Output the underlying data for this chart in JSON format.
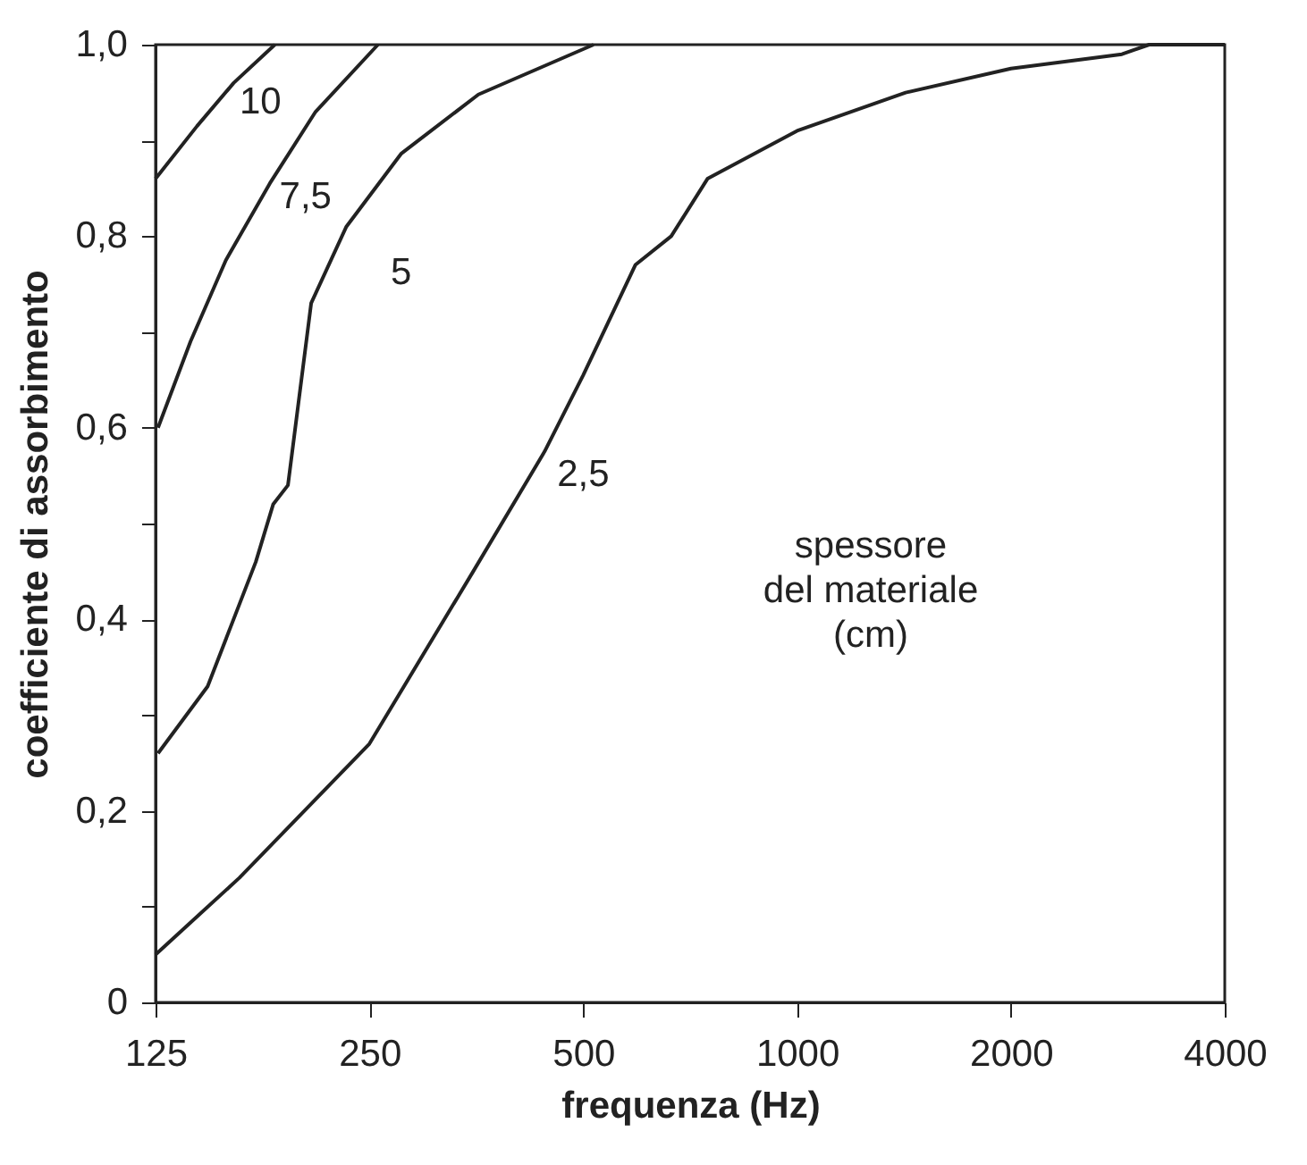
{
  "chart_data": {
    "type": "line",
    "xlabel": "frequenza (Hz)",
    "ylabel": "coefficiente di assorbimento",
    "log": "x",
    "grid": false,
    "legend": false,
    "marker": "none",
    "line_style": "solid",
    "xlim": [
      125,
      4000
    ],
    "xticks": [
      125,
      250,
      500,
      1000,
      2000,
      4000
    ],
    "ylim": [
      0,
      1
    ],
    "yticks": [
      {
        "value": 0,
        "label": "0"
      },
      {
        "value": 0.1,
        "label": null
      },
      {
        "value": 0.2,
        "label": "0,2"
      },
      {
        "value": 0.3,
        "label": null
      },
      {
        "value": 0.4,
        "label": "0,4"
      },
      {
        "value": 0.5,
        "label": null
      },
      {
        "value": 0.6,
        "label": "0,6"
      },
      {
        "value": 0.7,
        "label": null
      },
      {
        "value": 0.8,
        "label": "0,8"
      },
      {
        "value": 0.9,
        "label": null
      },
      {
        "value": 1,
        "label": "1,0"
      }
    ],
    "series": [
      {
        "name": "10",
        "color": "#222222",
        "x": [
          125,
          143,
          161,
          184
        ],
        "values": [
          0.86,
          0.915,
          0.96,
          1.0
        ]
      },
      {
        "name": "7,5",
        "color": "#222222",
        "x": [
          126,
          140,
          157,
          181,
          210,
          257
        ],
        "values": [
          0.6,
          0.69,
          0.775,
          0.855,
          0.93,
          1.0
        ]
      },
      {
        "name": "5",
        "color": "#222222",
        "x": [
          126,
          148,
          173,
          183,
          192,
          207,
          232,
          277,
          356,
          517
        ],
        "values": [
          0.26,
          0.33,
          0.46,
          0.52,
          0.54,
          0.73,
          0.81,
          0.886,
          0.948,
          1.0
        ]
      },
      {
        "name": "2,5",
        "color": "#222222",
        "x": [
          125,
          164,
          250,
          350,
          441,
          500,
          592,
          665,
          748,
          1000,
          1422,
          2000,
          2866,
          3130,
          4000
        ],
        "values": [
          0.05,
          0.13,
          0.27,
          0.45,
          0.575,
          0.655,
          0.77,
          0.8,
          0.86,
          0.91,
          0.95,
          0.975,
          0.99,
          1.0,
          1.0
        ]
      }
    ],
    "annotations": [
      "spessore\ndel materiale\n(cm)"
    ]
  }
}
